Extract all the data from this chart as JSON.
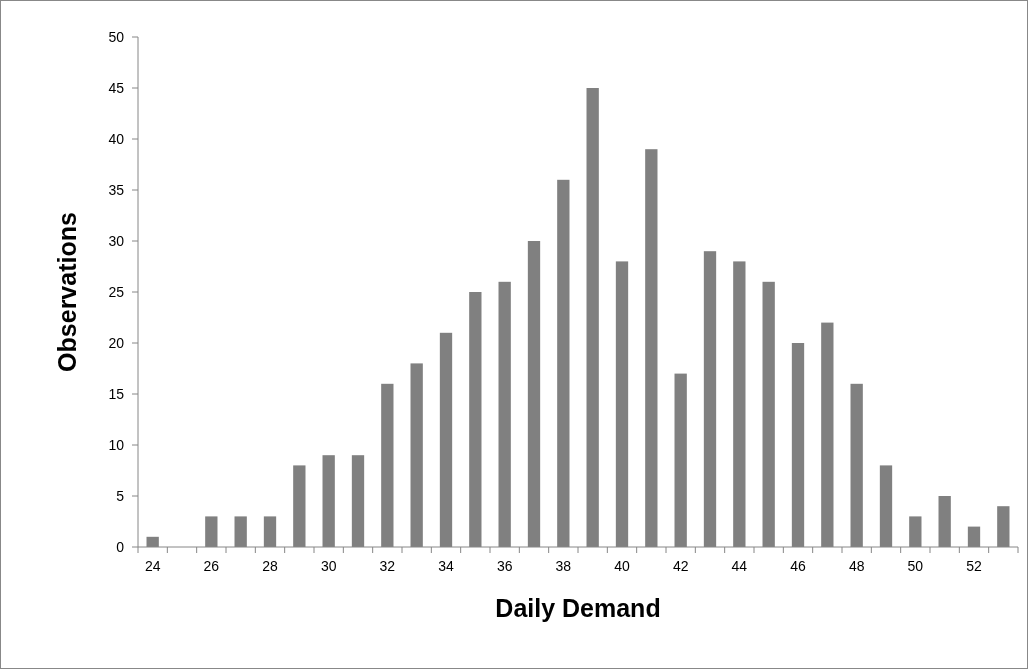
{
  "chart_data": {
    "type": "bar",
    "xlabel": "Daily Demand",
    "ylabel": "Observations",
    "categories": [
      "24",
      null,
      "26",
      null,
      "28",
      null,
      "30",
      null,
      "32",
      null,
      "34",
      null,
      "36",
      null,
      "38",
      null,
      "40",
      null,
      "42",
      null,
      "44",
      null,
      "46",
      null,
      "48",
      null,
      "50",
      null,
      "52",
      null
    ],
    "values": [
      1,
      0,
      3,
      3,
      3,
      8,
      9,
      9,
      16,
      18,
      21,
      25,
      26,
      30,
      36,
      45,
      28,
      39,
      17,
      29,
      28,
      26,
      20,
      22,
      16,
      8,
      3,
      5,
      2,
      4
    ],
    "color": "#808080",
    "ylim": [
      0,
      50
    ],
    "yticks": [
      0,
      5,
      10,
      15,
      20,
      25,
      30,
      35,
      40,
      45,
      50
    ],
    "grid": false
  }
}
